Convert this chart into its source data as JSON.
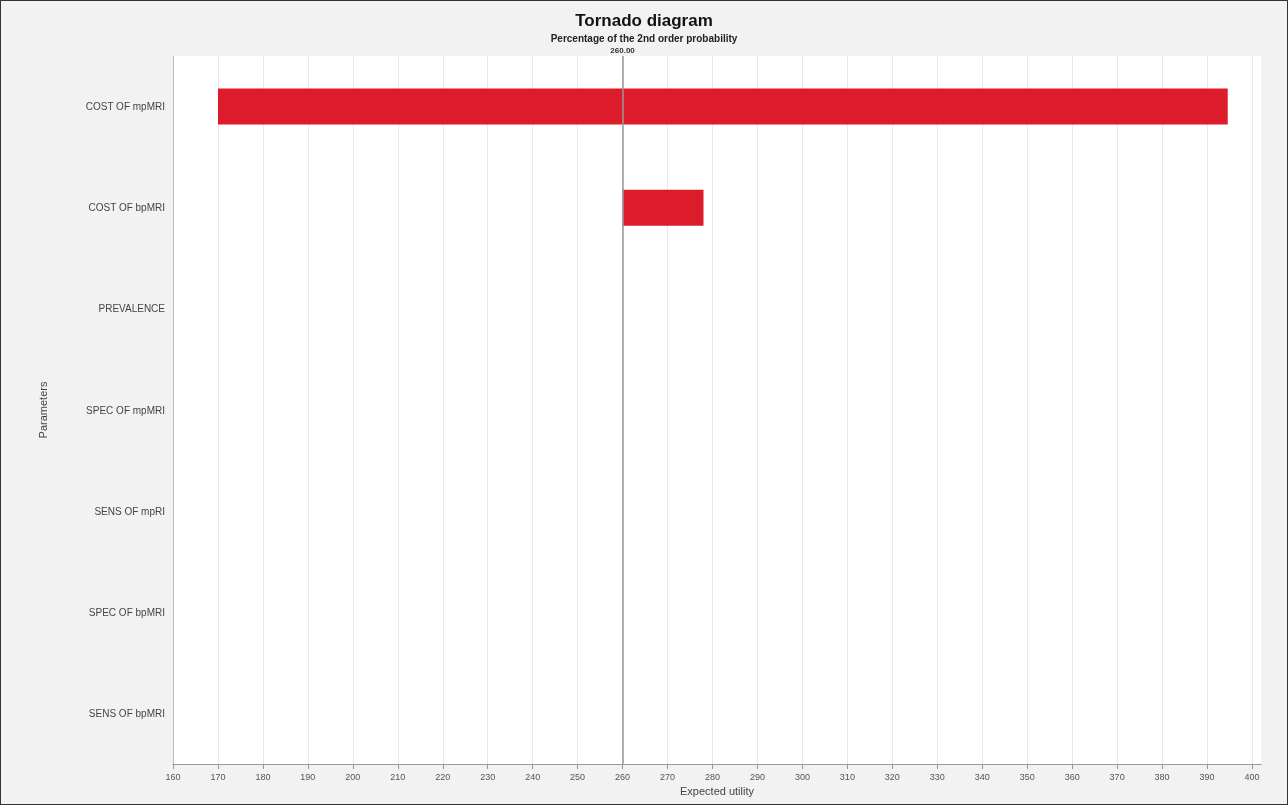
{
  "chart_data": {
    "type": "bar",
    "title": "Tornado diagram",
    "subtitle": "Percentage of the 2nd order probability",
    "xlabel": "Expected utility",
    "ylabel": "Parameters",
    "orientation": "horizontal",
    "categories": [
      "COST OF mpMRI",
      "COST OF bpMRI",
      "PREVALENCE",
      "SPEC OF mpMRI",
      "SENS OF mpRI",
      "SPEC OF bpMRI",
      "SENS OF bpMRI"
    ],
    "values": [
      224.6,
      18,
      null,
      null,
      null,
      null,
      null
    ],
    "base": [
      170,
      260,
      null,
      null,
      null,
      null,
      null
    ],
    "color": "#dc1c2a",
    "xlim": [
      160,
      402
    ],
    "xticks": [
      160,
      170,
      180,
      190,
      200,
      210,
      220,
      230,
      240,
      250,
      260,
      270,
      280,
      290,
      300,
      310,
      320,
      330,
      340,
      350,
      360,
      370,
      380,
      390,
      400
    ],
    "grid": "x",
    "ref_lines": [
      {
        "axis": "x",
        "value": 260,
        "label": "260.00",
        "color": "#999999"
      }
    ]
  }
}
